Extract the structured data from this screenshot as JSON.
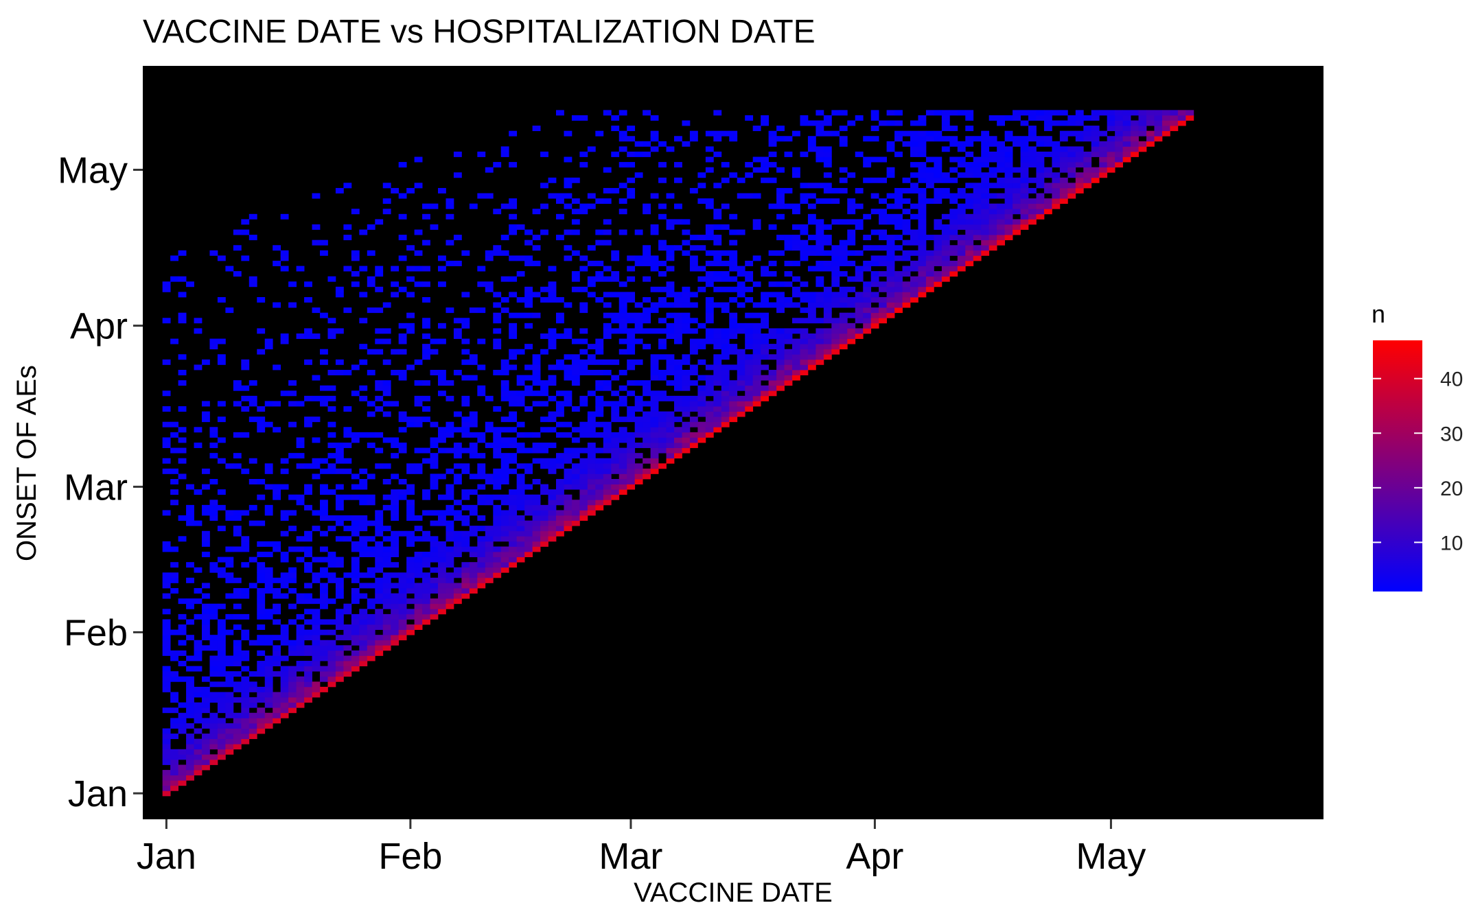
{
  "chart_data": {
    "type": "heatmap",
    "title": "VACCINE DATE vs HOSPITALIZATION DATE",
    "xlabel": "VACCINE DATE",
    "ylabel": "ONSET OF AEs",
    "x_axis": {
      "type": "date",
      "range": [
        "2021-12-29",
        "2022-05-28"
      ],
      "ticks": [
        {
          "label": "Jan",
          "date": "2022-01-01"
        },
        {
          "label": "Feb",
          "date": "2022-02-01"
        },
        {
          "label": "Mar",
          "date": "2022-03-01"
        },
        {
          "label": "Apr",
          "date": "2022-04-01"
        },
        {
          "label": "May",
          "date": "2022-05-01"
        }
      ]
    },
    "y_axis": {
      "type": "date",
      "range": [
        "2021-12-27",
        "2022-05-21"
      ],
      "ticks": [
        {
          "label": "Jan",
          "date": "2022-01-01"
        },
        {
          "label": "Feb",
          "date": "2022-02-01"
        },
        {
          "label": "Mar",
          "date": "2022-03-01"
        },
        {
          "label": "Apr",
          "date": "2022-04-01"
        },
        {
          "label": "May",
          "date": "2022-05-01"
        }
      ]
    },
    "value_range": [
      1,
      47
    ],
    "data_extent": {
      "x_start": "2022-01-01",
      "x_end": "2022-05-11",
      "y_start": "2022-01-01",
      "y_end": "2022-05-12",
      "lower_bound": "onset date >= vaccine date"
    },
    "legend": {
      "title": "n",
      "position": "right",
      "ticks": [
        10,
        20,
        30,
        40
      ],
      "gradient": [
        "#0000ff",
        "#ff0000"
      ]
    },
    "background": "#000000",
    "grid": false
  }
}
